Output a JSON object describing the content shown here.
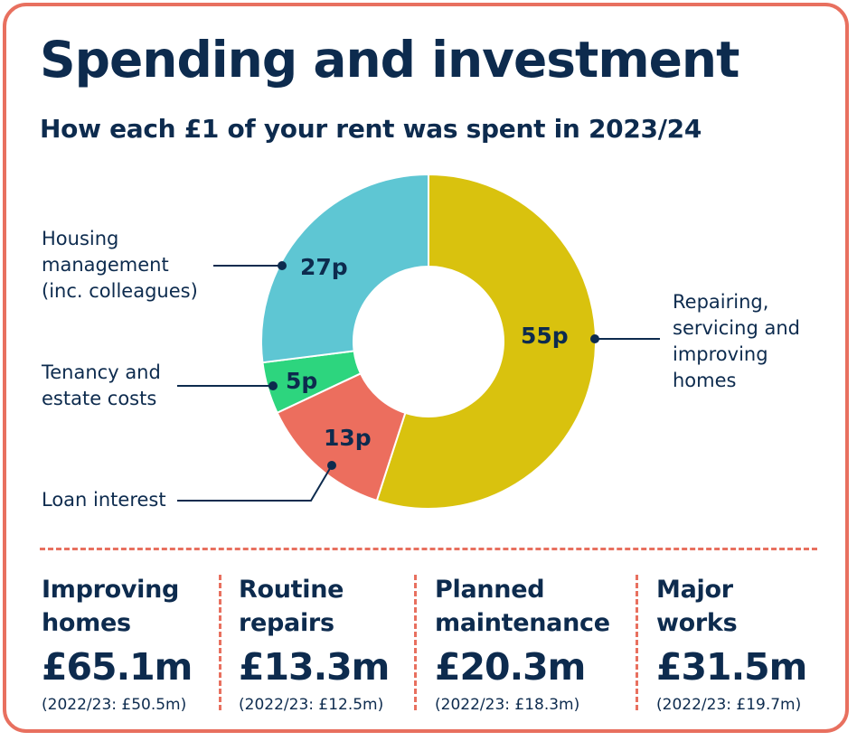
{
  "title": "Spending and investment",
  "subtitle": "How each £1 of your rent was spent in 2023/24",
  "chart_data": {
    "type": "pie",
    "variant": "donut",
    "title": "How each £1 of your rent was spent in 2023/24",
    "unit": "p",
    "slices": [
      {
        "label": "Repairing, servicing and improving homes",
        "value": 55,
        "display": "55p",
        "color": "#D9C20E"
      },
      {
        "label": "Loan interest",
        "value": 13,
        "display": "13p",
        "color": "#EC6E5E"
      },
      {
        "label": "Tenancy and estate costs",
        "value": 5,
        "display": "5p",
        "color": "#2DD57E"
      },
      {
        "label": "Housing management (inc. colleagues)",
        "value": 27,
        "display": "27p",
        "color": "#5EC6D3"
      }
    ]
  },
  "labels": {
    "repairing": [
      "Repairing,",
      "servicing and",
      "improving",
      "homes"
    ],
    "loan": [
      "Loan interest"
    ],
    "tenancy": [
      "Tenancy and",
      "estate costs"
    ],
    "housing": [
      "Housing",
      "management",
      "(inc. colleagues)"
    ]
  },
  "stats": [
    {
      "name": [
        "Improving",
        "homes"
      ],
      "value": "£65.1m",
      "previous": "(2022/23: £50.5m)"
    },
    {
      "name": [
        "Routine",
        "repairs"
      ],
      "value": "£13.3m",
      "previous": "(2022/23: £12.5m)"
    },
    {
      "name": [
        "Planned",
        "maintenance"
      ],
      "value": "£20.3m",
      "previous": "(2022/23: £18.3m)"
    },
    {
      "name": [
        "Major",
        "works"
      ],
      "value": "£31.5m",
      "previous": "(2022/23: £19.7m)"
    }
  ],
  "colors": {
    "navy": "#0D2B4E",
    "border": "#E8705F"
  }
}
